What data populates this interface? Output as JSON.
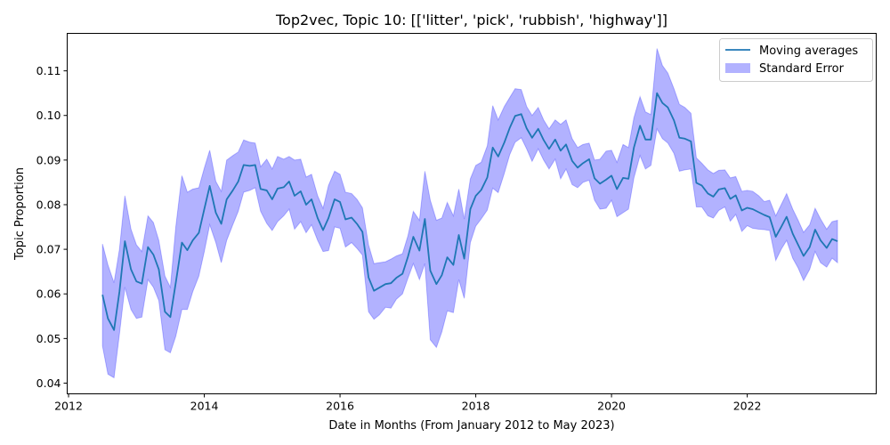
{
  "chart_data": {
    "type": "line",
    "title": "Top2vec, Topic 10: [['litter', 'pick', 'rubbish', 'highway']]",
    "xlabel": "Date in Months (From January 2012 to May 2023)",
    "ylabel": "Topic Proportion",
    "xlim": [
      2011.98,
      2023.9
    ],
    "ylim": [
      0.0376,
      0.1184
    ],
    "xticks": [
      2012,
      2014,
      2016,
      2018,
      2020,
      2022
    ],
    "yticks": [
      0.04,
      0.05,
      0.06,
      0.07,
      0.08,
      0.09,
      0.1,
      0.11
    ],
    "ytick_labels": [
      "0.04",
      "0.05",
      "0.06",
      "0.07",
      "0.08",
      "0.09",
      "0.10",
      "0.11"
    ],
    "legend_position": "top-right",
    "grid": false,
    "series": [
      {
        "name": "Moving averages",
        "kind": "line",
        "color": "#1f77b4",
        "x": [
          2012.5,
          2012.58,
          2012.67,
          2012.75,
          2012.83,
          2012.92,
          2013.0,
          2013.08,
          2013.17,
          2013.25,
          2013.33,
          2013.42,
          2013.5,
          2013.58,
          2013.67,
          2013.75,
          2013.83,
          2013.92,
          2014.0,
          2014.08,
          2014.17,
          2014.25,
          2014.33,
          2014.42,
          2014.5,
          2014.58,
          2014.67,
          2014.75,
          2014.83,
          2014.92,
          2015.0,
          2015.08,
          2015.17,
          2015.25,
          2015.33,
          2015.42,
          2015.5,
          2015.58,
          2015.67,
          2015.75,
          2015.83,
          2015.92,
          2016.0,
          2016.08,
          2016.17,
          2016.25,
          2016.33,
          2016.42,
          2016.5,
          2016.58,
          2016.67,
          2016.75,
          2016.83,
          2016.92,
          2017.0,
          2017.08,
          2017.17,
          2017.25,
          2017.33,
          2017.42,
          2017.5,
          2017.58,
          2017.67,
          2017.75,
          2017.83,
          2017.92,
          2018.0,
          2018.08,
          2018.17,
          2018.25,
          2018.33,
          2018.42,
          2018.5,
          2018.58,
          2018.67,
          2018.75,
          2018.83,
          2018.92,
          2019.0,
          2019.08,
          2019.17,
          2019.25,
          2019.33,
          2019.42,
          2019.5,
          2019.58,
          2019.67,
          2019.75,
          2019.83,
          2019.92,
          2020.0,
          2020.08,
          2020.17,
          2020.25,
          2020.33,
          2020.42,
          2020.5,
          2020.58,
          2020.67,
          2020.75,
          2020.83,
          2020.92,
          2021.0,
          2021.08,
          2021.17,
          2021.25,
          2021.33,
          2021.42,
          2021.5,
          2021.58,
          2021.67,
          2021.75,
          2021.83,
          2021.92,
          2022.0,
          2022.08,
          2022.17,
          2022.25,
          2022.33,
          2022.42,
          2022.5,
          2022.58,
          2022.67,
          2022.75,
          2022.83,
          2022.92,
          2023.0,
          2023.08,
          2023.17,
          2023.25,
          2023.33
        ],
        "y": [
          0.0598,
          0.0545,
          0.0519,
          0.0605,
          0.0718,
          0.0655,
          0.0628,
          0.0623,
          0.0705,
          0.0688,
          0.0655,
          0.056,
          0.0548,
          0.0625,
          0.0715,
          0.0698,
          0.072,
          0.0737,
          0.079,
          0.0842,
          0.0782,
          0.0757,
          0.0812,
          0.0832,
          0.0852,
          0.0889,
          0.0887,
          0.0889,
          0.0835,
          0.0832,
          0.0812,
          0.0836,
          0.0839,
          0.0852,
          0.082,
          0.083,
          0.08,
          0.0812,
          0.077,
          0.0743,
          0.077,
          0.0812,
          0.0806,
          0.0767,
          0.0771,
          0.0757,
          0.0739,
          0.0637,
          0.0607,
          0.0614,
          0.0622,
          0.0624,
          0.0636,
          0.0645,
          0.0683,
          0.0728,
          0.0697,
          0.0768,
          0.0652,
          0.0622,
          0.0642,
          0.0682,
          0.0665,
          0.0732,
          0.0679,
          0.079,
          0.082,
          0.0833,
          0.0861,
          0.0928,
          0.0908,
          0.0939,
          0.0972,
          0.0999,
          0.1003,
          0.0971,
          0.095,
          0.097,
          0.0945,
          0.0925,
          0.0946,
          0.0921,
          0.0935,
          0.0898,
          0.0883,
          0.0893,
          0.0902,
          0.0859,
          0.0847,
          0.0856,
          0.0865,
          0.0835,
          0.086,
          0.0858,
          0.0928,
          0.0977,
          0.0946,
          0.0946,
          0.105,
          0.1028,
          0.1018,
          0.0989,
          0.095,
          0.0948,
          0.0942,
          0.0849,
          0.0843,
          0.0825,
          0.0818,
          0.0834,
          0.0837,
          0.0813,
          0.0821,
          0.0787,
          0.0793,
          0.079,
          0.0783,
          0.0777,
          0.0772,
          0.0728,
          0.075,
          0.0773,
          0.0735,
          0.071,
          0.0685,
          0.0705,
          0.0744,
          0.072,
          0.0703,
          0.0723,
          0.0718
        ]
      },
      {
        "name": "Standard Error",
        "kind": "band",
        "color": "#0000ff",
        "opacity": 0.3,
        "lower": [
          0.0483,
          0.042,
          0.0412,
          0.051,
          0.0615,
          0.0565,
          0.0545,
          0.0548,
          0.0632,
          0.0615,
          0.0585,
          0.0475,
          0.0468,
          0.0505,
          0.0565,
          0.0565,
          0.0605,
          0.064,
          0.0695,
          0.0755,
          0.0715,
          0.067,
          0.072,
          0.0755,
          0.0785,
          0.0828,
          0.0832,
          0.0838,
          0.0785,
          0.0758,
          0.0742,
          0.0762,
          0.0775,
          0.079,
          0.0745,
          0.0762,
          0.0737,
          0.0755,
          0.072,
          0.0695,
          0.0697,
          0.075,
          0.0747,
          0.0705,
          0.0715,
          0.0702,
          0.0687,
          0.056,
          0.0543,
          0.0553,
          0.057,
          0.0568,
          0.0588,
          0.06,
          0.0635,
          0.0668,
          0.0632,
          0.0668,
          0.0497,
          0.048,
          0.0515,
          0.0562,
          0.0558,
          0.0632,
          0.059,
          0.0715,
          0.0752,
          0.0768,
          0.0788,
          0.0837,
          0.0827,
          0.087,
          0.0912,
          0.094,
          0.095,
          0.0925,
          0.0897,
          0.0925,
          0.09,
          0.088,
          0.0902,
          0.0858,
          0.088,
          0.0845,
          0.0838,
          0.085,
          0.0855,
          0.081,
          0.079,
          0.0792,
          0.081,
          0.0773,
          0.0782,
          0.079,
          0.086,
          0.091,
          0.088,
          0.0888,
          0.097,
          0.0948,
          0.0938,
          0.0915,
          0.0875,
          0.0878,
          0.088,
          0.0795,
          0.0795,
          0.0775,
          0.077,
          0.0787,
          0.0795,
          0.0763,
          0.0778,
          0.074,
          0.0753,
          0.0747,
          0.0745,
          0.0744,
          0.0742,
          0.0675,
          0.07,
          0.072,
          0.068,
          0.0658,
          0.063,
          0.0655,
          0.0695,
          0.067,
          0.066,
          0.068,
          0.067
        ],
        "upper": [
          0.0712,
          0.0665,
          0.0625,
          0.07,
          0.082,
          0.0745,
          0.071,
          0.0695,
          0.0775,
          0.076,
          0.072,
          0.064,
          0.0615,
          0.075,
          0.0865,
          0.0828,
          0.0835,
          0.0838,
          0.0882,
          0.0922,
          0.0852,
          0.083,
          0.09,
          0.091,
          0.0918,
          0.0945,
          0.094,
          0.0938,
          0.0885,
          0.0902,
          0.088,
          0.0908,
          0.0902,
          0.0908,
          0.09,
          0.0902,
          0.0862,
          0.0868,
          0.082,
          0.0792,
          0.0843,
          0.0875,
          0.0868,
          0.0828,
          0.0825,
          0.0812,
          0.0793,
          0.071,
          0.0668,
          0.067,
          0.0672,
          0.0678,
          0.0685,
          0.069,
          0.073,
          0.0785,
          0.0765,
          0.0875,
          0.081,
          0.0765,
          0.077,
          0.0805,
          0.0775,
          0.0835,
          0.0768,
          0.0858,
          0.0888,
          0.0895,
          0.0932,
          0.1022,
          0.099,
          0.102,
          0.104,
          0.106,
          0.1058,
          0.102,
          0.1,
          0.1018,
          0.099,
          0.097,
          0.099,
          0.098,
          0.099,
          0.0948,
          0.0928,
          0.0935,
          0.0938,
          0.09,
          0.0902,
          0.092,
          0.0922,
          0.0895,
          0.0935,
          0.0928,
          0.0995,
          0.1042,
          0.1008,
          0.1002,
          0.115,
          0.1112,
          0.1095,
          0.106,
          0.1025,
          0.1018,
          0.1005,
          0.0905,
          0.0893,
          0.0878,
          0.087,
          0.0877,
          0.0878,
          0.086,
          0.0863,
          0.083,
          0.0832,
          0.083,
          0.082,
          0.0807,
          0.081,
          0.0775,
          0.08,
          0.0825,
          0.079,
          0.0765,
          0.0738,
          0.0755,
          0.0792,
          0.0768,
          0.0745,
          0.0762,
          0.0765
        ]
      }
    ]
  }
}
